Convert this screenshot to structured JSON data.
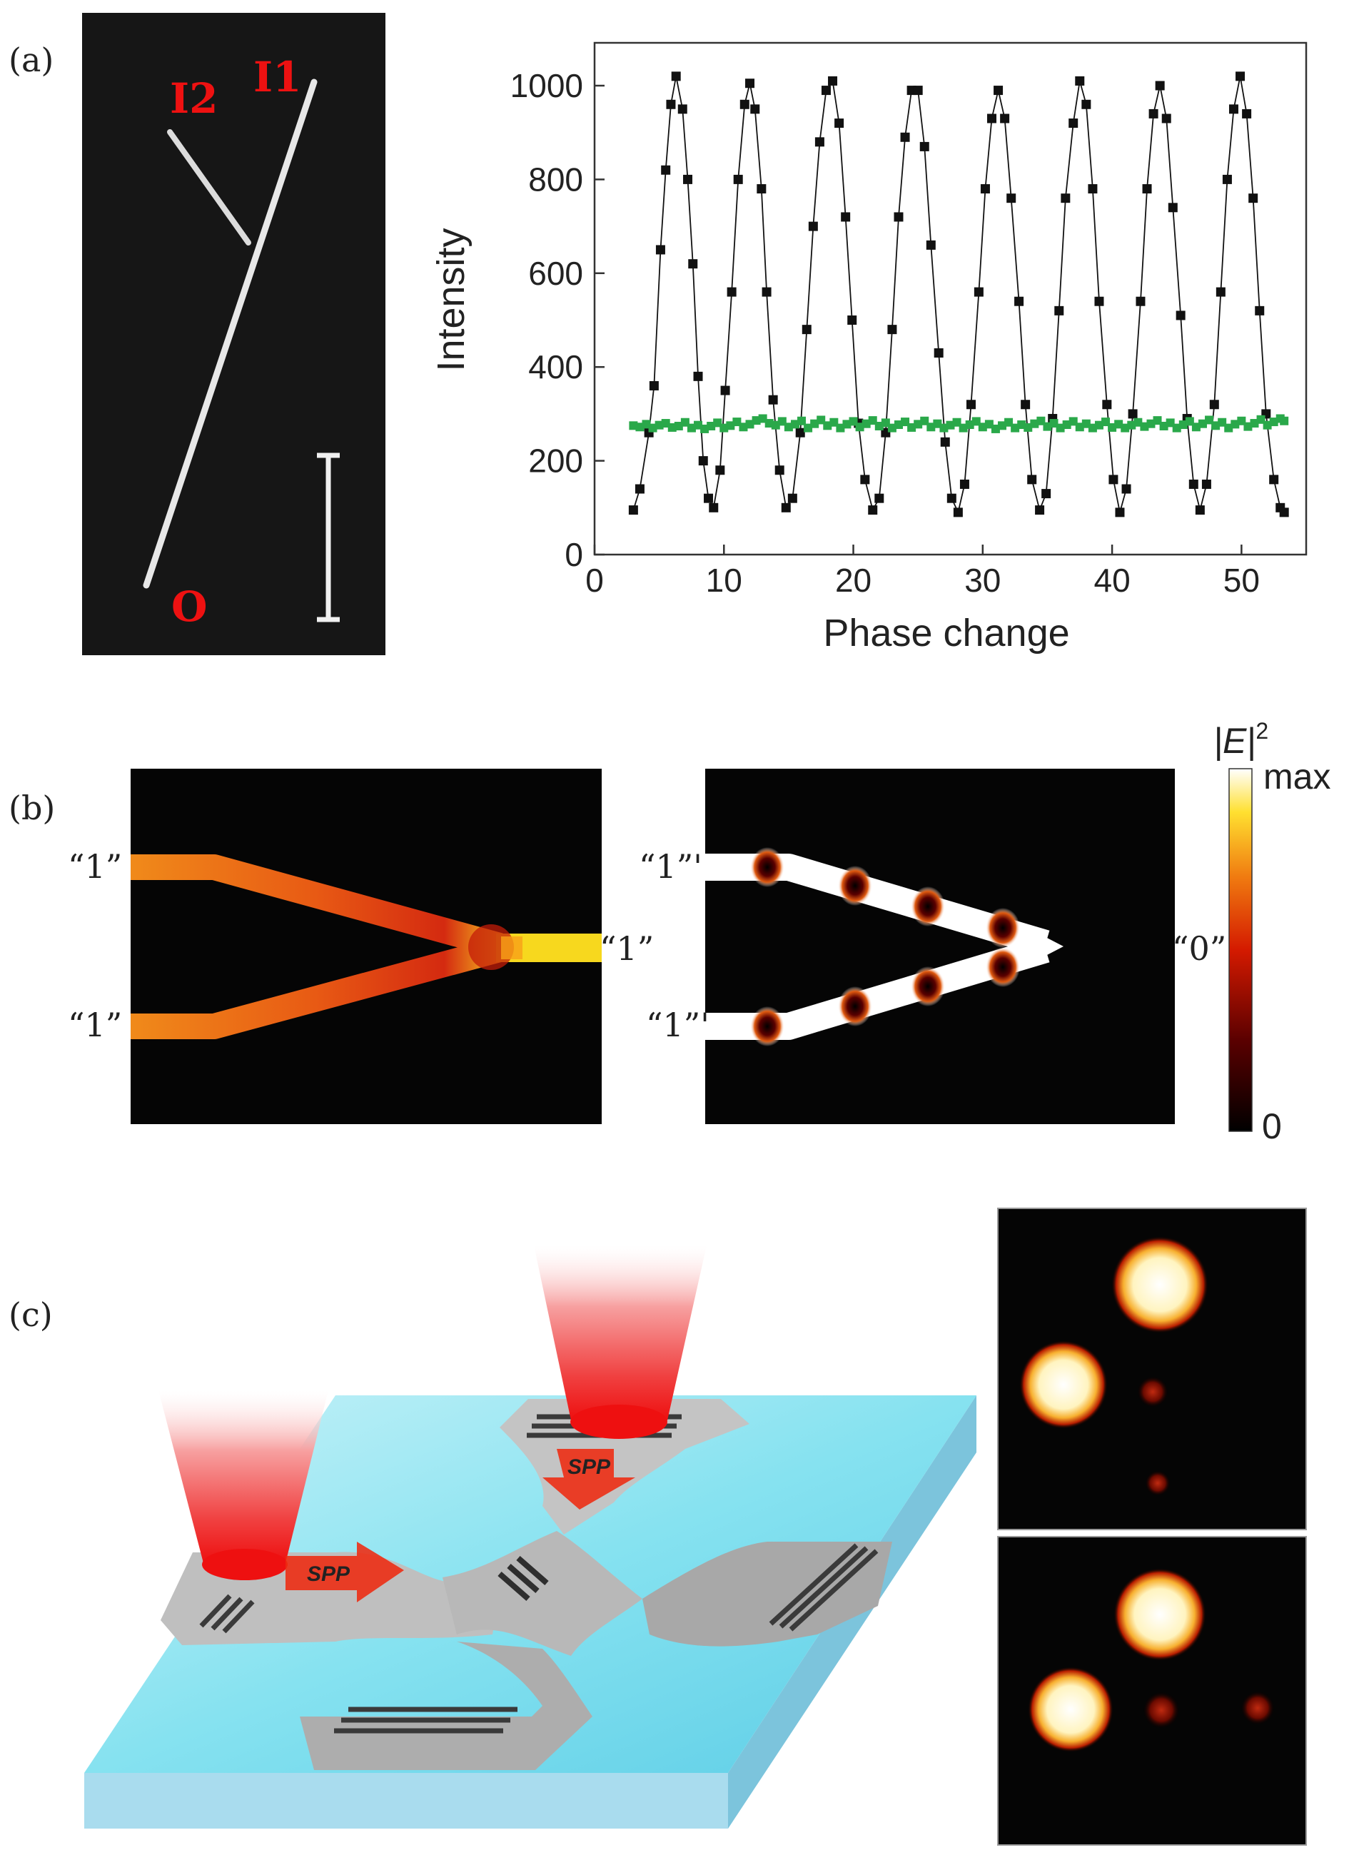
{
  "panel_labels": {
    "a": "(a)",
    "b": "(b)",
    "c": "(c)"
  },
  "panel_a": {
    "micrograph": {
      "input1": "I1",
      "input2": "I2",
      "output": "O"
    },
    "chart_data": {
      "type": "scatter",
      "xlabel": "Phase change",
      "ylabel": "Intensity",
      "xlim": [
        0,
        55
      ],
      "ylim": [
        0,
        1000
      ],
      "xticks": [
        "0",
        "10",
        "20",
        "30",
        "40",
        "50"
      ],
      "yticks": [
        "0",
        "200",
        "400",
        "600",
        "800",
        "1000"
      ],
      "grid": false,
      "series": [
        {
          "color": "#111111",
          "marker": "square",
          "connected": true,
          "values": [
            [
              3.0,
              95
            ],
            [
              3.5,
              140
            ],
            [
              4.2,
              260
            ],
            [
              4.6,
              360
            ],
            [
              5.1,
              650
            ],
            [
              5.5,
              820
            ],
            [
              5.9,
              960
            ],
            [
              6.3,
              1020
            ],
            [
              6.8,
              950
            ],
            [
              7.2,
              800
            ],
            [
              7.6,
              620
            ],
            [
              8.0,
              380
            ],
            [
              8.4,
              200
            ],
            [
              8.8,
              120
            ],
            [
              9.2,
              100
            ],
            [
              9.7,
              180
            ],
            [
              10.1,
              350
            ],
            [
              10.6,
              560
            ],
            [
              11.1,
              800
            ],
            [
              11.6,
              960
            ],
            [
              12.0,
              1005
            ],
            [
              12.4,
              950
            ],
            [
              12.9,
              780
            ],
            [
              13.3,
              560
            ],
            [
              13.8,
              330
            ],
            [
              14.3,
              180
            ],
            [
              14.8,
              100
            ],
            [
              15.3,
              120
            ],
            [
              15.9,
              260
            ],
            [
              16.4,
              480
            ],
            [
              16.9,
              700
            ],
            [
              17.4,
              880
            ],
            [
              17.9,
              990
            ],
            [
              18.4,
              1010
            ],
            [
              18.9,
              920
            ],
            [
              19.4,
              720
            ],
            [
              19.9,
              500
            ],
            [
              20.4,
              280
            ],
            [
              20.9,
              160
            ],
            [
              21.5,
              95
            ],
            [
              22.0,
              120
            ],
            [
              22.5,
              260
            ],
            [
              23.0,
              480
            ],
            [
              23.5,
              720
            ],
            [
              24.0,
              890
            ],
            [
              24.5,
              990
            ],
            [
              25.0,
              990
            ],
            [
              25.5,
              870
            ],
            [
              26.0,
              660
            ],
            [
              26.6,
              430
            ],
            [
              27.1,
              240
            ],
            [
              27.6,
              120
            ],
            [
              28.1,
              90
            ],
            [
              28.6,
              150
            ],
            [
              29.1,
              320
            ],
            [
              29.7,
              560
            ],
            [
              30.2,
              780
            ],
            [
              30.7,
              930
            ],
            [
              31.2,
              990
            ],
            [
              31.7,
              930
            ],
            [
              32.2,
              760
            ],
            [
              32.8,
              540
            ],
            [
              33.3,
              320
            ],
            [
              33.8,
              160
            ],
            [
              34.4,
              95
            ],
            [
              34.9,
              130
            ],
            [
              35.4,
              290
            ],
            [
              35.9,
              520
            ],
            [
              36.4,
              760
            ],
            [
              37.0,
              920
            ],
            [
              37.5,
              1010
            ],
            [
              38.0,
              960
            ],
            [
              38.5,
              780
            ],
            [
              39.0,
              540
            ],
            [
              39.6,
              320
            ],
            [
              40.1,
              160
            ],
            [
              40.6,
              90
            ],
            [
              41.1,
              140
            ],
            [
              41.6,
              300
            ],
            [
              42.2,
              540
            ],
            [
              42.7,
              780
            ],
            [
              43.2,
              940
            ],
            [
              43.7,
              1000
            ],
            [
              44.2,
              930
            ],
            [
              44.7,
              740
            ],
            [
              45.3,
              510
            ],
            [
              45.8,
              290
            ],
            [
              46.3,
              150
            ],
            [
              46.8,
              95
            ],
            [
              47.3,
              150
            ],
            [
              47.9,
              320
            ],
            [
              48.4,
              560
            ],
            [
              48.9,
              800
            ],
            [
              49.4,
              950
            ],
            [
              49.9,
              1020
            ],
            [
              50.4,
              940
            ],
            [
              50.9,
              760
            ],
            [
              51.4,
              520
            ],
            [
              51.9,
              300
            ],
            [
              52.5,
              160
            ],
            [
              53.0,
              100
            ],
            [
              53.3,
              90
            ]
          ]
        },
        {
          "color": "#2aa84a",
          "marker": "square",
          "connected": true,
          "values": [
            [
              3.0,
              275
            ],
            [
              3.5,
              272
            ],
            [
              4.0,
              278
            ],
            [
              4.5,
              270
            ],
            [
              5.0,
              276
            ],
            [
              5.5,
              280
            ],
            [
              6.0,
              271
            ],
            [
              6.5,
              274
            ],
            [
              7.0,
              282
            ],
            [
              7.5,
              270
            ],
            [
              8.0,
              276
            ],
            [
              8.5,
              268
            ],
            [
              9.0,
              274
            ],
            [
              9.5,
              281
            ],
            [
              10.0,
              270
            ],
            [
              10.5,
              275
            ],
            [
              11.0,
              283
            ],
            [
              11.5,
              272
            ],
            [
              12.0,
              278
            ],
            [
              12.5,
              286
            ],
            [
              13.0,
              290
            ],
            [
              13.5,
              280
            ],
            [
              14.0,
              276
            ],
            [
              14.5,
              284
            ],
            [
              15.0,
              272
            ],
            [
              15.5,
              278
            ],
            [
              16.0,
              285
            ],
            [
              16.5,
              270
            ],
            [
              17.0,
              279
            ],
            [
              17.5,
              287
            ],
            [
              18.0,
              275
            ],
            [
              18.5,
              282
            ],
            [
              19.0,
              270
            ],
            [
              19.5,
              278
            ],
            [
              20.0,
              284
            ],
            [
              20.5,
              272
            ],
            [
              21.0,
              279
            ],
            [
              21.5,
              286
            ],
            [
              22.0,
              274
            ],
            [
              22.5,
              281
            ],
            [
              23.0,
              270
            ],
            [
              23.5,
              277
            ],
            [
              24.0,
              283
            ],
            [
              24.5,
              271
            ],
            [
              25.0,
              278
            ],
            [
              25.5,
              285
            ],
            [
              26.0,
              272
            ],
            [
              26.5,
              279
            ],
            [
              27.0,
              270
            ],
            [
              27.5,
              276
            ],
            [
              28.0,
              282
            ],
            [
              28.5,
              270
            ],
            [
              29.0,
              277
            ],
            [
              29.5,
              284
            ],
            [
              30.0,
              272
            ],
            [
              30.5,
              278
            ],
            [
              31.0,
              268
            ],
            [
              31.5,
              275
            ],
            [
              32.0,
              282
            ],
            [
              32.5,
              270
            ],
            [
              33.0,
              277
            ],
            [
              33.5,
              271
            ],
            [
              34.0,
              279
            ],
            [
              34.5,
              285
            ],
            [
              35.0,
              273
            ],
            [
              35.5,
              280
            ],
            [
              36.0,
              270
            ],
            [
              36.5,
              277
            ],
            [
              37.0,
              284
            ],
            [
              37.5,
              272
            ],
            [
              38.0,
              279
            ],
            [
              38.5,
              270
            ],
            [
              39.0,
              276
            ],
            [
              39.5,
              283
            ],
            [
              40.0,
              271
            ],
            [
              40.5,
              278
            ],
            [
              41.0,
              270
            ],
            [
              41.5,
              276
            ],
            [
              42.0,
              282
            ],
            [
              42.5,
              273
            ],
            [
              43.0,
              279
            ],
            [
              43.5,
              286
            ],
            [
              44.0,
              274
            ],
            [
              44.5,
              281
            ],
            [
              45.0,
              270
            ],
            [
              45.5,
              277
            ],
            [
              46.0,
              284
            ],
            [
              46.5,
              272
            ],
            [
              47.0,
              279
            ],
            [
              47.5,
              287
            ],
            [
              48.0,
              275
            ],
            [
              48.5,
              282
            ],
            [
              49.0,
              270
            ],
            [
              49.5,
              278
            ],
            [
              50.0,
              285
            ],
            [
              50.5,
              273
            ],
            [
              51.0,
              280
            ],
            [
              51.5,
              288
            ],
            [
              52.0,
              276
            ],
            [
              52.5,
              283
            ],
            [
              53.0,
              290
            ],
            [
              53.3,
              285
            ]
          ]
        }
      ]
    }
  },
  "panel_b": {
    "left": {
      "input_top": "“1”",
      "input_bottom": "“1”",
      "output": "“1”"
    },
    "right": {
      "input_top": "“1”'",
      "input_bottom": "“1”'",
      "output": "“0”"
    },
    "colorbar": {
      "title_base": "|E|",
      "title_exp": "2",
      "max_label": "max",
      "min_label": "0"
    }
  },
  "panel_c": {
    "arrow_label_1": "SPP",
    "arrow_label_2": "SPP"
  }
}
